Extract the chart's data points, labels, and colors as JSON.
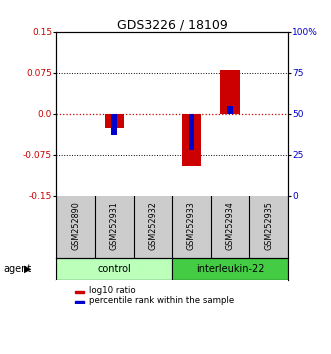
{
  "title": "GDS3226 / 18109",
  "samples": [
    "GSM252890",
    "GSM252931",
    "GSM252932",
    "GSM252933",
    "GSM252934",
    "GSM252935"
  ],
  "log10_ratio": [
    0.0,
    -0.025,
    0.0,
    -0.095,
    0.08,
    0.0
  ],
  "percentile_rank_raw": [
    50,
    37,
    50,
    28,
    55,
    50
  ],
  "ylim": [
    -0.15,
    0.15
  ],
  "yticks_left": [
    -0.15,
    -0.075,
    0.0,
    0.075,
    0.15
  ],
  "yticks_right": [
    0,
    25,
    50,
    75,
    100
  ],
  "bar_width": 0.5,
  "red_color": "#cc0000",
  "blue_color": "#0000cc",
  "left_axis_color": "#cc0000",
  "right_axis_color": "#0000cc",
  "legend_red": "log10 ratio",
  "legend_blue": "percentile rank within the sample",
  "background_sample": "#cccccc",
  "control_color": "#bbffbb",
  "interleukin_color": "#44cc44",
  "group_starts": [
    0,
    3
  ],
  "group_ends": [
    2,
    5
  ],
  "group_names": [
    "control",
    "interleukin-22"
  ]
}
